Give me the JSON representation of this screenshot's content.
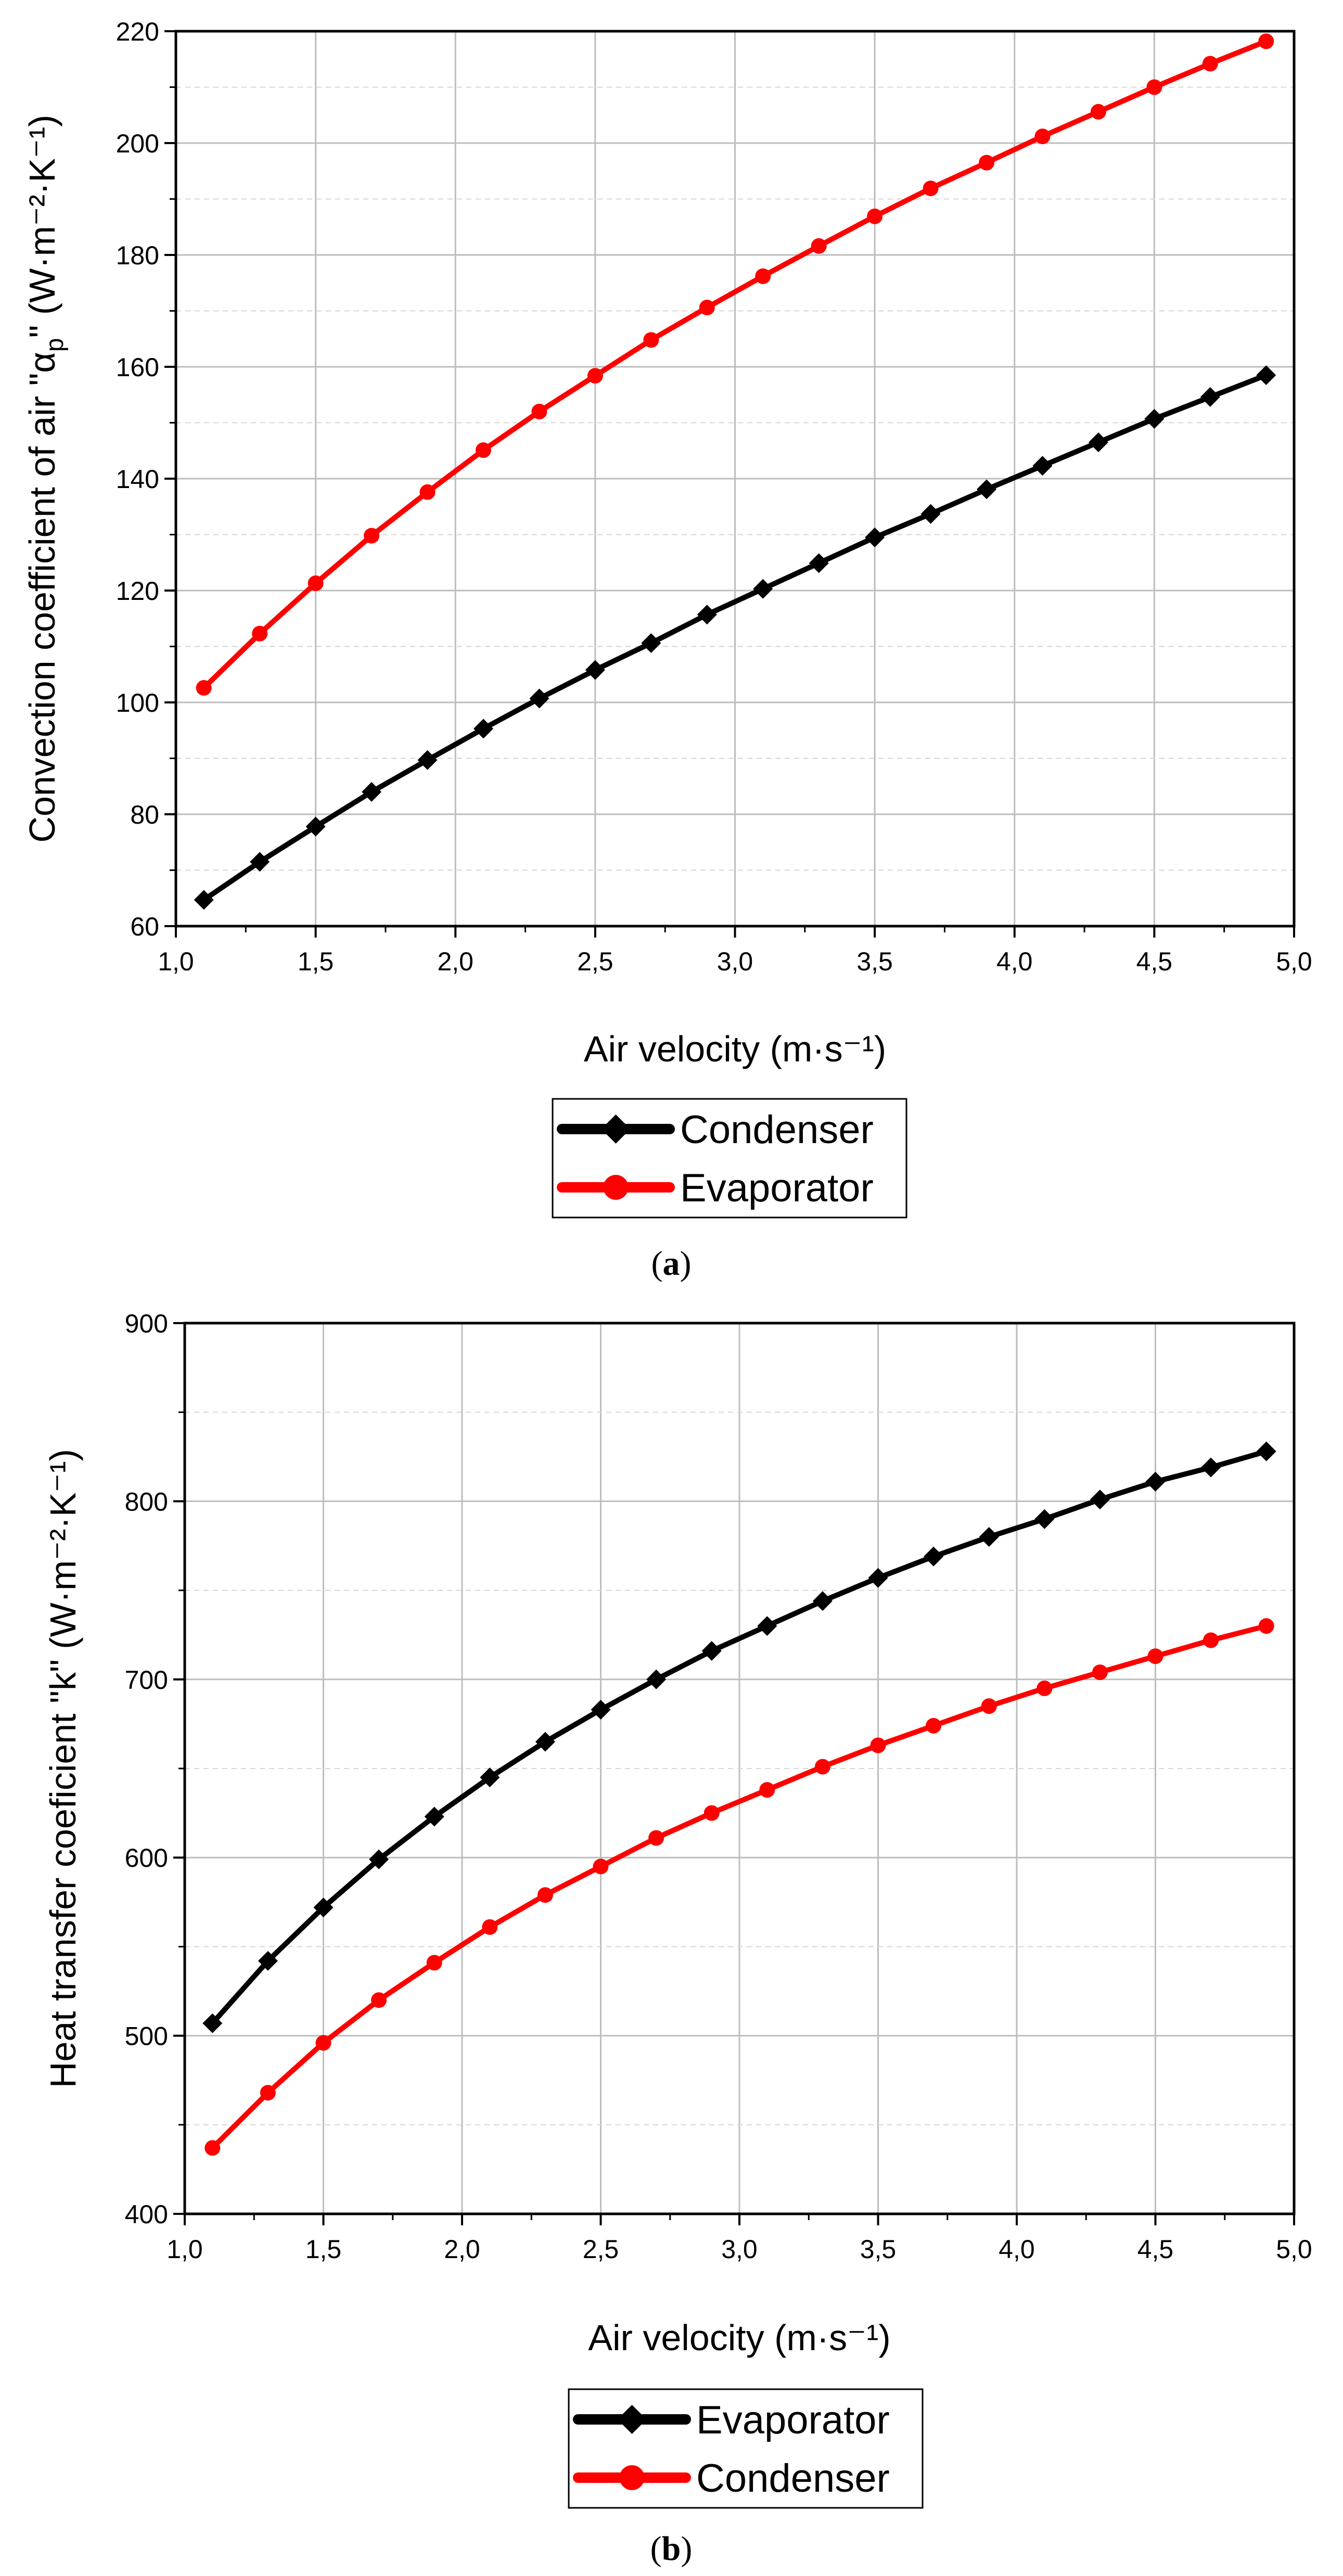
{
  "chart_data": [
    {
      "type": "line",
      "panel_label": "(a)",
      "xlabel": "Air velocity (m·s⁻¹)",
      "ylabel": "Convection coefficient of air \"αp\" (W·m⁻²·K⁻¹)",
      "ylabel_parts": {
        "pre": "Convection coefficient of air \"α",
        "sub": "p",
        "post": "\" (W·m⁻²·K⁻¹)"
      },
      "xlim": [
        1.0,
        5.0
      ],
      "ylim": [
        60,
        220
      ],
      "xticks": [
        1.0,
        1.5,
        2.0,
        2.5,
        3.0,
        3.5,
        4.0,
        4.5,
        5.0
      ],
      "xtick_labels": [
        "1,0",
        "1,5",
        "2,0",
        "2,5",
        "3,0",
        "3,5",
        "4,0",
        "4,5",
        "5,0"
      ],
      "yticks": [
        60,
        80,
        100,
        120,
        140,
        160,
        180,
        200,
        220
      ],
      "ytick_labels": [
        "60",
        "80",
        "100",
        "120",
        "140",
        "160",
        "180",
        "200",
        "220"
      ],
      "grid": true,
      "legend_position": "bottom-center",
      "x": [
        1.1,
        1.3,
        1.5,
        1.7,
        1.9,
        2.1,
        2.3,
        2.5,
        2.7,
        2.9,
        3.1,
        3.3,
        3.5,
        3.7,
        3.9,
        4.1,
        4.3,
        4.5,
        4.7,
        4.9
      ],
      "series": [
        {
          "name": "Condenser",
          "color": "#000000",
          "marker": "diamond",
          "values": [
            64.7,
            71.5,
            77.8,
            84.0,
            89.7,
            95.3,
            100.7,
            105.8,
            110.6,
            115.7,
            120.3,
            124.9,
            129.5,
            133.7,
            138.1,
            142.3,
            146.5,
            150.7,
            154.6,
            158.5
          ]
        },
        {
          "name": "Evaporator",
          "color": "#ff0000",
          "marker": "circle",
          "values": [
            102.6,
            112.3,
            121.3,
            129.8,
            137.6,
            145.1,
            152.0,
            158.4,
            164.8,
            170.6,
            176.2,
            181.6,
            186.9,
            191.9,
            196.5,
            201.2,
            205.6,
            210.0,
            214.2,
            218.2
          ]
        }
      ]
    },
    {
      "type": "line",
      "panel_label": "(b)",
      "xlabel": "Air velocity (m·s⁻¹)",
      "ylabel": "Heat transfer coeficient \"k\" (W·m⁻²·K⁻¹)",
      "xlim": [
        1.0,
        5.0
      ],
      "ylim": [
        400,
        900
      ],
      "xticks": [
        1.0,
        1.5,
        2.0,
        2.5,
        3.0,
        3.5,
        4.0,
        4.5,
        5.0
      ],
      "xtick_labels": [
        "1,0",
        "1,5",
        "2,0",
        "2,5",
        "3,0",
        "3,5",
        "4,0",
        "4,5",
        "5,0"
      ],
      "yticks": [
        400,
        500,
        600,
        700,
        800,
        900
      ],
      "ytick_labels": [
        "400",
        "500",
        "600",
        "700",
        "800",
        "900"
      ],
      "grid": true,
      "legend_position": "bottom-center",
      "x": [
        1.1,
        1.3,
        1.5,
        1.7,
        1.9,
        2.1,
        2.3,
        2.5,
        2.7,
        2.9,
        3.1,
        3.3,
        3.5,
        3.7,
        3.9,
        4.1,
        4.3,
        4.5,
        4.7,
        4.9
      ],
      "series": [
        {
          "name": "Evaporator",
          "color": "#000000",
          "marker": "diamond",
          "values": [
            507,
            542,
            572,
            599,
            623,
            645,
            665,
            683,
            700,
            716,
            730,
            744,
            757,
            769,
            780,
            790,
            801,
            811,
            819,
            828
          ]
        },
        {
          "name": "Condenser",
          "color": "#ff0000",
          "marker": "circle",
          "values": [
            437,
            468,
            496,
            520,
            541,
            561,
            579,
            595,
            611,
            625,
            638,
            651,
            663,
            674,
            685,
            695,
            704,
            713,
            722,
            730
          ]
        }
      ]
    }
  ]
}
